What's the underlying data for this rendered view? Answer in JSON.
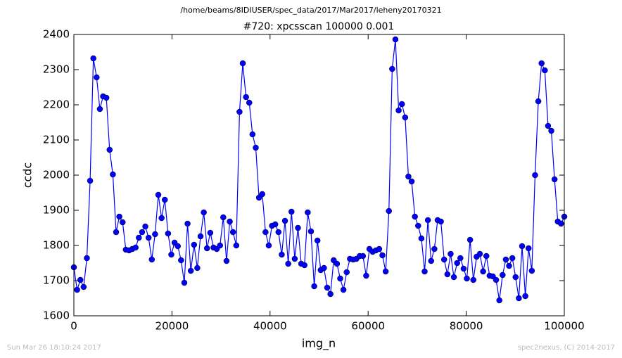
{
  "chart_data": {
    "type": "line",
    "suptitle": "/home/beams/8IDIUSER/spec_data/2017/Mar2017/leheny20170321",
    "title": "#720: xpcsscan 100000 0.001",
    "x_label": "img_n",
    "y_label": "ccdc",
    "footer_left": "Sun Mar 26 18:10:24 2017",
    "footer_right": "spec2nexus, (C) 2014-2017",
    "x": [
      0,
      662,
      1325,
      1987,
      2649,
      3311,
      3974,
      4636,
      5298,
      5960,
      6623,
      7285,
      7947,
      8609,
      9272,
      9934,
      10596,
      11258,
      11921,
      12583,
      13245,
      13907,
      14570,
      15232,
      15894,
      16556,
      17219,
      17881,
      18543,
      19205,
      19868,
      20530,
      21192,
      21854,
      22517,
      23179,
      23841,
      24503,
      25166,
      25828,
      26490,
      27152,
      27815,
      28477,
      29139,
      29801,
      30464,
      31126,
      31788,
      32450,
      33113,
      33775,
      34437,
      35099,
      35762,
      36424,
      37086,
      37748,
      38411,
      39073,
      39735,
      40397,
      41060,
      41722,
      42384,
      43046,
      43709,
      44371,
      45033,
      45695,
      46358,
      47020,
      47682,
      48344,
      49007,
      49669,
      50331,
      50993,
      51656,
      52318,
      52980,
      53642,
      54305,
      54967,
      55629,
      56291,
      56954,
      57616,
      58278,
      58940,
      59603,
      60265,
      60927,
      61589,
      62252,
      62914,
      63576,
      64238,
      64901,
      65563,
      66225,
      66887,
      67550,
      68212,
      68874,
      69536,
      70199,
      70861,
      71523,
      72185,
      72848,
      73510,
      74172,
      74834,
      75497,
      76159,
      76821,
      77483,
      78146,
      78808,
      79470,
      80132,
      80795,
      81457,
      82119,
      82781,
      83444,
      84106,
      84768,
      85430,
      86093,
      86755,
      87417,
      88079,
      88742,
      89404,
      90066,
      90728,
      91391,
      92053,
      92715,
      93377,
      94040,
      94702,
      95364,
      96026,
      96689,
      97351,
      98013,
      98675,
      99338,
      100000
    ],
    "series": [
      {
        "name": "ccdc",
        "color": "#0000ff",
        "values": [
          1738,
          1674,
          1702,
          1682,
          1764,
          1984,
          2332,
          2278,
          2188,
          2224,
          2220,
          2072,
          2002,
          1838,
          1882,
          1866,
          1788,
          1786,
          1790,
          1794,
          1822,
          1838,
          1854,
          1822,
          1760,
          1832,
          1944,
          1878,
          1930,
          1834,
          1774,
          1808,
          1798,
          1758,
          1694,
          1862,
          1728,
          1802,
          1736,
          1826,
          1894,
          1792,
          1836,
          1794,
          1790,
          1800,
          1880,
          1756,
          1868,
          1838,
          1800,
          2180,
          2318,
          2222,
          2206,
          2116,
          2078,
          1936,
          1946,
          1838,
          1800,
          1856,
          1860,
          1838,
          1774,
          1870,
          1748,
          1896,
          1762,
          1850,
          1748,
          1744,
          1894,
          1840,
          1684,
          1814,
          1730,
          1736,
          1680,
          1662,
          1758,
          1748,
          1706,
          1674,
          1724,
          1762,
          1760,
          1762,
          1770,
          1770,
          1714,
          1790,
          1782,
          1786,
          1790,
          1772,
          1726,
          1898,
          2302,
          2386,
          2184,
          2202,
          2164,
          1996,
          1982,
          1882,
          1856,
          1820,
          1726,
          1872,
          1756,
          1790,
          1872,
          1868,
          1760,
          1718,
          1776,
          1710,
          1750,
          1764,
          1734,
          1706,
          1816,
          1702,
          1768,
          1776,
          1726,
          1770,
          1714,
          1712,
          1702,
          1644,
          1716,
          1760,
          1742,
          1764,
          1710,
          1650,
          1798,
          1656,
          1792,
          1728,
          2000,
          2210,
          2318,
          2298,
          2140,
          2126,
          1988,
          1868,
          1862,
          1882
        ]
      }
    ],
    "xlim": [
      0,
      100000
    ],
    "xticks": [
      0,
      20000,
      40000,
      60000,
      80000,
      100000
    ],
    "ylim": [
      1600,
      2400
    ],
    "yticks": [
      1600,
      1700,
      1800,
      1900,
      2000,
      2100,
      2200,
      2300,
      2400
    ],
    "grid": false
  }
}
